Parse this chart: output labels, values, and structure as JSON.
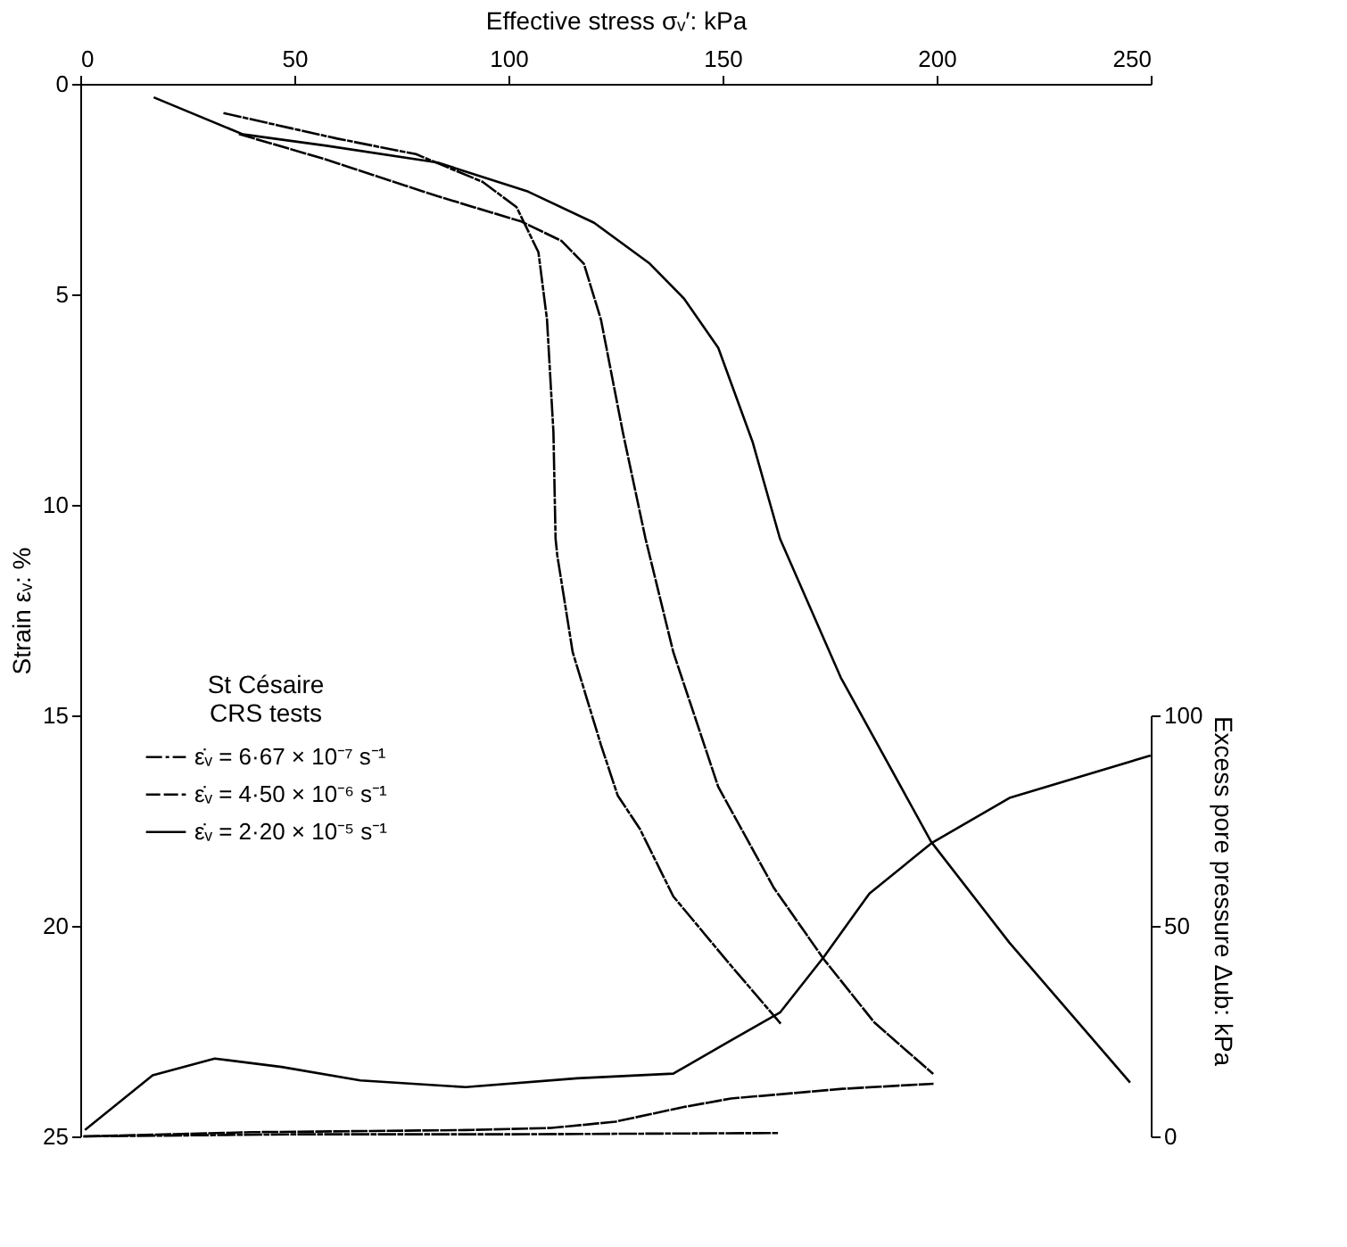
{
  "chart_data": {
    "type": "line",
    "xlabel": "Effective stress σᵥ′: kPa",
    "ylabel": "Strain εᵥ: %",
    "y2label": "Excess pore pressure Δub: kPa",
    "legend_title": "St Césaire\nCRS tests",
    "legend": "left",
    "grid": false,
    "marker": "none",
    "xlim": [
      0,
      250
    ],
    "xticks": [
      0,
      50,
      100,
      150,
      200,
      250
    ],
    "ylim": [
      25,
      0
    ],
    "yticks": [
      0,
      5,
      10,
      15,
      20,
      25
    ],
    "y2lim": [
      0,
      100
    ],
    "y2ticks": [
      0,
      50,
      100
    ],
    "series": [
      {
        "name": "ε̇ᵥ = 6·67 × 10⁻⁷ s⁻¹",
        "color": "#000000",
        "line_style": "dashdot",
        "x": [
          33.7,
          60,
          78.4,
          94,
          101.9,
          107,
          109,
          110.5,
          111,
          111.4,
          115,
          121.6,
          125.5,
          130.7,
          138.5,
          151.6,
          163.4
        ],
        "values": [
          0.7,
          1.3,
          1.67,
          2.33,
          2.93,
          4,
          5.6,
          8.27,
          10.8,
          11.2,
          13.5,
          15.7,
          16.9,
          17.7,
          19.3,
          20.9,
          22.3
        ]
      },
      {
        "name": "ε̇ᵥ = 4·50 × 10⁻⁶ s⁻¹",
        "color": "#000000",
        "line_style": "dashed",
        "x": [
          37.3,
          57.5,
          83.5,
          103,
          112.4,
          117.6,
          121.6,
          126.7,
          132,
          138.5,
          149,
          162,
          173.7,
          185.5,
          199
        ],
        "values": [
          1.2,
          1.8,
          2.67,
          3.27,
          3.73,
          4.27,
          5.6,
          8.27,
          10.8,
          13.5,
          16.7,
          19.1,
          20.8,
          22.3,
          23.5
        ]
      },
      {
        "name": "ε̇ᵥ = 2·20 × 10⁻⁵ s⁻¹",
        "color": "#000000",
        "line_style": "solid",
        "x": [
          17.4,
          38,
          57.5,
          83.5,
          104.6,
          120,
          133,
          141,
          149,
          157,
          163.4,
          177.6,
          198.7,
          217,
          245
        ],
        "values": [
          0.33,
          1.2,
          1.47,
          1.87,
          2.56,
          3.3,
          4.27,
          5.1,
          6.27,
          8.5,
          10.8,
          14.1,
          18,
          20.4,
          23.7
        ]
      },
      {
        "axis": "y2",
        "color": "#000000",
        "line_style": "dashdot",
        "x": [
          1,
          50,
          100,
          163
        ],
        "values": [
          0,
          0.5,
          0.5,
          0.8
        ]
      },
      {
        "axis": "y2",
        "color": "#000000",
        "line_style": "dashed",
        "x": [
          1,
          40,
          90,
          110,
          125,
          141,
          152,
          178,
          199
        ],
        "values": [
          0,
          1,
          1.5,
          2,
          3.5,
          7,
          9,
          11.3,
          12.5
        ]
      },
      {
        "axis": "y2",
        "color": "#000000",
        "line_style": "solid",
        "x": [
          1.3,
          16.9,
          31.4,
          47,
          65.4,
          90,
          116,
          138.5,
          151.6,
          163.4,
          173.7,
          184.3,
          199,
          217,
          249.7
        ],
        "values": [
          1.7,
          14.5,
          18.5,
          16.5,
          13.3,
          11.7,
          13.8,
          14.9,
          22.6,
          29.4,
          42.7,
          57.7,
          69.8,
          80.4,
          90.4
        ]
      }
    ]
  }
}
